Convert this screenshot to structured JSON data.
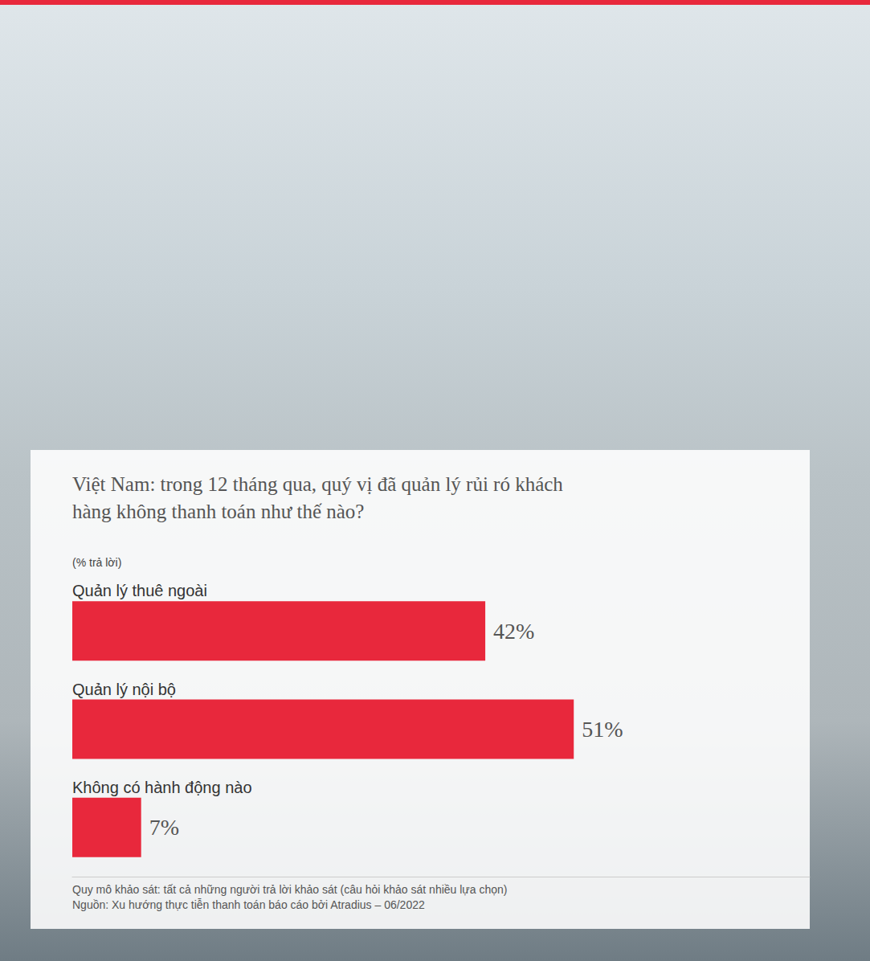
{
  "chart_data": {
    "type": "bar",
    "orientation": "horizontal",
    "title": "Việt Nam: trong 12 tháng qua, quý vị đã quản lý rủi ró khách hàng không thanh toán như thế nào?",
    "subtitle": "(% trả lời)",
    "categories": [
      "Quản lý thuê ngoài",
      "Quản lý nội bộ",
      "Không có hành động nào"
    ],
    "values": [
      42,
      51,
      7
    ],
    "value_labels": [
      "42%",
      "51%",
      "7%"
    ],
    "color": "#e8283c",
    "xlim": [
      0,
      75
    ],
    "tick_labels": false,
    "grid": false,
    "data_labels": true,
    "annotations": [
      "Quy mô khảo sát: tất cả những người trả lời khảo sát (câu hỏi khảo sát nhiều lựa chọn)",
      "Nguồn: Xu hướng thực tiễn thanh toán báo cáo bởi Atradius – 06/2022"
    ]
  }
}
